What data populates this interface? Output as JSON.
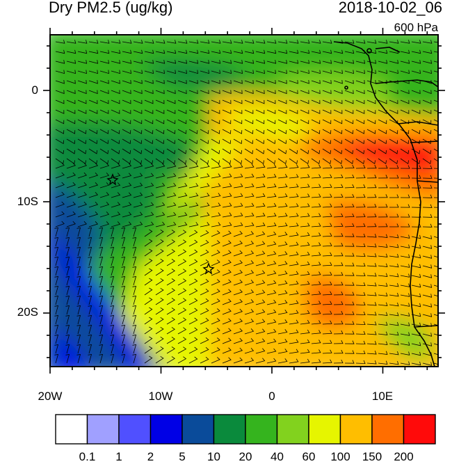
{
  "title": "Dry PM2.5 (ug/kg)",
  "datetime": "2018-10-02_06",
  "level": "600 hPa",
  "lat_labels": [
    "0",
    "10S",
    "20S"
  ],
  "lon_labels": [
    "20W",
    "10W",
    "0",
    "10E"
  ],
  "colorbar": {
    "colors": [
      "#ffffff",
      "#a0a0ff",
      "#5050ff",
      "#0000e6",
      "#0a4b9a",
      "#0a8a3c",
      "#35b41e",
      "#82d21e",
      "#e6f500",
      "#ffbe00",
      "#ff6e00",
      "#ff0a0a"
    ],
    "labels": [
      "0.1",
      "1",
      "2",
      "5",
      "10",
      "20",
      "40",
      "60",
      "100",
      "150",
      "200"
    ]
  },
  "markers": [
    "star-marker",
    "star-marker"
  ]
}
